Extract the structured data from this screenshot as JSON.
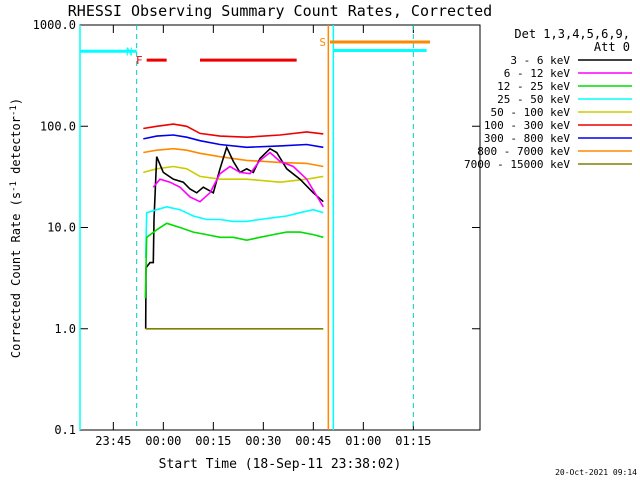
{
  "chart_data": {
    "type": "line",
    "title": "RHESSI Observing Summary Count Rates, Corrected",
    "xlabel": "Start Time (18-Sep-11 23:38:02)",
    "ylabel_pre": "Corrected Count Rate (s",
    "ylabel_sup1": "-1",
    "ylabel_mid": " detector",
    "ylabel_sup2": "-1",
    "ylabel_post": ")",
    "y_scale": "log",
    "ylim": [
      0.1,
      1000
    ],
    "xlim_minutes": [
      -20,
      100
    ],
    "x_ticks": [
      {
        "v": -10,
        "label": "23:45"
      },
      {
        "v": 5,
        "label": "00:00"
      },
      {
        "v": 20,
        "label": "00:15"
      },
      {
        "v": 35,
        "label": "00:30"
      },
      {
        "v": 50,
        "label": "00:45"
      },
      {
        "v": 65,
        "label": "01:00"
      },
      {
        "v": 80,
        "label": "01:15"
      }
    ],
    "y_ticks": [
      {
        "v": 0.1,
        "label": "0.1"
      },
      {
        "v": 1,
        "label": "1.0"
      },
      {
        "v": 10,
        "label": "10.0"
      },
      {
        "v": 100,
        "label": "100.0"
      },
      {
        "v": 1000,
        "label": "1000.0"
      }
    ],
    "legend": {
      "header1": "Det 1,3,4,5,6,9,",
      "header2": "Att 0",
      "entries": [
        {
          "name": "3 - 6 keV",
          "color": "#000000"
        },
        {
          "name": "6 - 12 keV",
          "color": "#ff00ff"
        },
        {
          "name": "12 - 25 keV",
          "color": "#00dd00"
        },
        {
          "name": "25 - 50 keV",
          "color": "#00ffff"
        },
        {
          "name": "50 - 100 keV",
          "color": "#cccc00"
        },
        {
          "name": "100 - 300 keV",
          "color": "#ee0000"
        },
        {
          "name": "300 - 800 keV",
          "color": "#0000ee"
        },
        {
          "name": "800 - 7000 keV",
          "color": "#ff8800"
        },
        {
          "name": "7000 - 15000 keV",
          "color": "#808000"
        }
      ]
    },
    "series": [
      {
        "color": "#ee0000",
        "points": [
          [
            -1,
            95
          ],
          [
            3,
            100
          ],
          [
            8,
            105
          ],
          [
            12,
            100
          ],
          [
            16,
            85
          ],
          [
            22,
            80
          ],
          [
            30,
            78
          ],
          [
            40,
            82
          ],
          [
            48,
            88
          ],
          [
            53,
            84
          ]
        ]
      },
      {
        "color": "#0000ee",
        "points": [
          [
            -1,
            75
          ],
          [
            3,
            80
          ],
          [
            8,
            82
          ],
          [
            12,
            78
          ],
          [
            16,
            72
          ],
          [
            22,
            66
          ],
          [
            30,
            62
          ],
          [
            40,
            64
          ],
          [
            48,
            66
          ],
          [
            53,
            62
          ]
        ]
      },
      {
        "color": "#ff8800",
        "points": [
          [
            -1,
            55
          ],
          [
            3,
            58
          ],
          [
            8,
            60
          ],
          [
            12,
            58
          ],
          [
            16,
            54
          ],
          [
            22,
            50
          ],
          [
            30,
            46
          ],
          [
            40,
            44
          ],
          [
            48,
            43
          ],
          [
            53,
            40
          ]
        ]
      },
      {
        "color": "#cccc00",
        "points": [
          [
            -1,
            35
          ],
          [
            3,
            38
          ],
          [
            8,
            40
          ],
          [
            12,
            38
          ],
          [
            16,
            32
          ],
          [
            22,
            30
          ],
          [
            30,
            30
          ],
          [
            40,
            28
          ],
          [
            48,
            30
          ],
          [
            53,
            32
          ]
        ]
      },
      {
        "color": "#000000",
        "points": [
          [
            -0.3,
            1
          ],
          [
            -0.2,
            4
          ],
          [
            1,
            4.5
          ],
          [
            2,
            4.5
          ],
          [
            2.2,
            12
          ],
          [
            3,
            50
          ],
          [
            5,
            35
          ],
          [
            8,
            30
          ],
          [
            11,
            28
          ],
          [
            13,
            24
          ],
          [
            15,
            22
          ],
          [
            17,
            25
          ],
          [
            20,
            22
          ],
          [
            22,
            38
          ],
          [
            24,
            62
          ],
          [
            26,
            45
          ],
          [
            28,
            35
          ],
          [
            30,
            38
          ],
          [
            32,
            35
          ],
          [
            34,
            48
          ],
          [
            37,
            60
          ],
          [
            39,
            55
          ],
          [
            42,
            38
          ],
          [
            46,
            30
          ],
          [
            50,
            22
          ],
          [
            53,
            18
          ]
        ]
      },
      {
        "color": "#ff00ff",
        "points": [
          [
            2,
            25
          ],
          [
            4,
            30
          ],
          [
            7,
            28
          ],
          [
            10,
            25
          ],
          [
            13,
            20
          ],
          [
            16,
            18
          ],
          [
            19,
            22
          ],
          [
            22,
            34
          ],
          [
            25,
            40
          ],
          [
            28,
            35
          ],
          [
            31,
            34
          ],
          [
            34,
            46
          ],
          [
            37,
            55
          ],
          [
            40,
            45
          ],
          [
            44,
            40
          ],
          [
            48,
            30
          ],
          [
            53,
            16
          ]
        ]
      },
      {
        "color": "#00ffff",
        "points": [
          [
            -0.3,
            5
          ],
          [
            0,
            14
          ],
          [
            3,
            15
          ],
          [
            6,
            16
          ],
          [
            10,
            15
          ],
          [
            14,
            13
          ],
          [
            18,
            12
          ],
          [
            22,
            12
          ],
          [
            26,
            11.5
          ],
          [
            30,
            11.5
          ],
          [
            34,
            12
          ],
          [
            38,
            12.5
          ],
          [
            42,
            13
          ],
          [
            46,
            14
          ],
          [
            50,
            15
          ],
          [
            53,
            14
          ]
        ]
      },
      {
        "color": "#00dd00",
        "points": [
          [
            -0.4,
            2
          ],
          [
            0,
            8
          ],
          [
            3,
            9.5
          ],
          [
            6,
            11
          ],
          [
            10,
            10
          ],
          [
            14,
            9
          ],
          [
            18,
            8.5
          ],
          [
            22,
            8
          ],
          [
            26,
            8
          ],
          [
            30,
            7.5
          ],
          [
            34,
            8
          ],
          [
            38,
            8.5
          ],
          [
            42,
            9
          ],
          [
            46,
            9
          ],
          [
            50,
            8.5
          ],
          [
            53,
            8
          ]
        ]
      },
      {
        "color": "#808000",
        "points": [
          [
            -0.3,
            1
          ],
          [
            53,
            1
          ]
        ]
      }
    ],
    "att_state_segments": [
      {
        "label": "",
        "color": "#00ffff",
        "y": 550,
        "from": -20,
        "to": -3
      },
      {
        "label": "N",
        "color": "#00ffff",
        "y": 550,
        "from": -3,
        "to": -3
      },
      {
        "label": "F",
        "color": "#ee0000",
        "y": 450,
        "from": 0,
        "to": 6
      },
      {
        "label": "",
        "color": "#ee0000",
        "y": 450,
        "from": 16,
        "to": 45
      },
      {
        "label": "S",
        "color": "#ff8800",
        "y": 680,
        "from": 55,
        "to": 85
      },
      {
        "label": "",
        "color": "#00ffff",
        "y": 560,
        "from": 56,
        "to": 84
      }
    ],
    "vlines_dashed": [
      -3,
      80
    ],
    "vlines_solid": [
      {
        "v": 54.5,
        "color": "#ff8800"
      },
      {
        "v": 56,
        "color": "#00ffff"
      },
      {
        "v": -20,
        "color": "#00ffff"
      }
    ],
    "footer_date": "20-Oct-2021 09:14"
  }
}
